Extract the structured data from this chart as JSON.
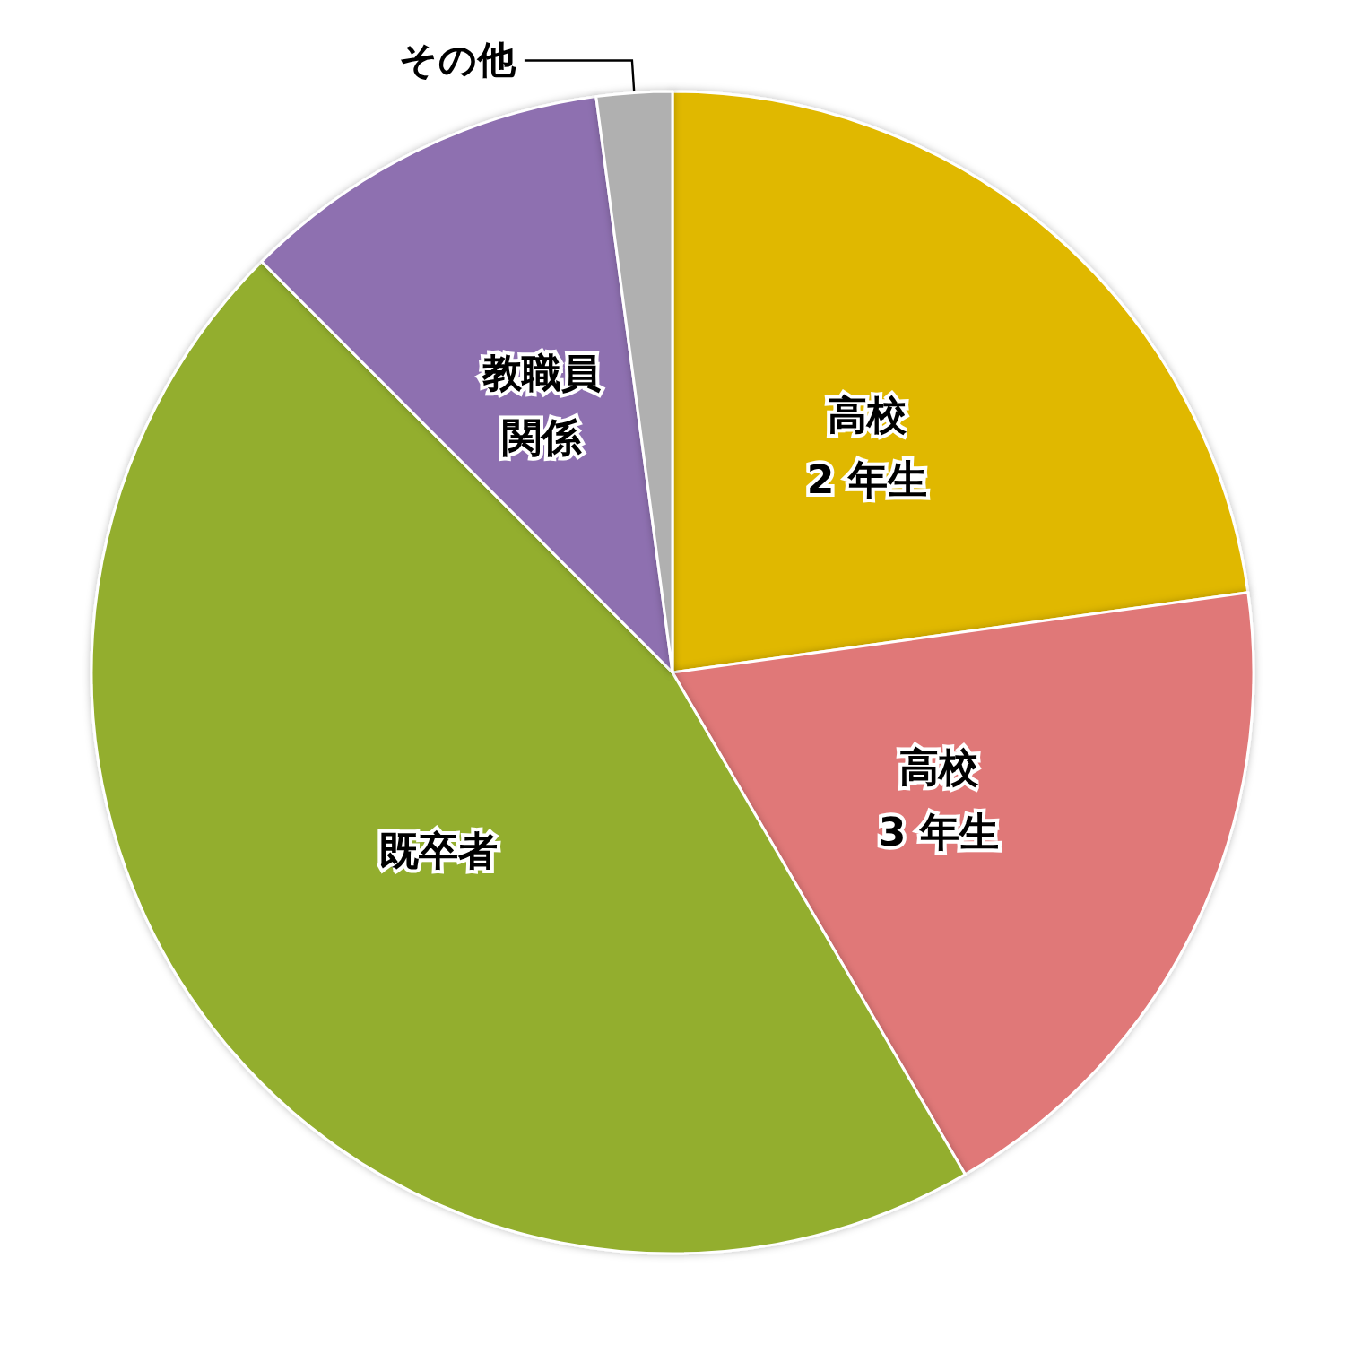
{
  "chart_data": {
    "type": "pie",
    "categories": [
      "高校\n2 年生",
      "高校\n3 年生",
      "既卒者",
      "教職員関係",
      "その他"
    ],
    "values": [
      22.8,
      18.8,
      45.9,
      10.4,
      2.1
    ],
    "colors": [
      "#e0b800",
      "#e07878",
      "#93ae2e",
      "#8e6fb0",
      "#b0b0b0"
    ]
  }
}
